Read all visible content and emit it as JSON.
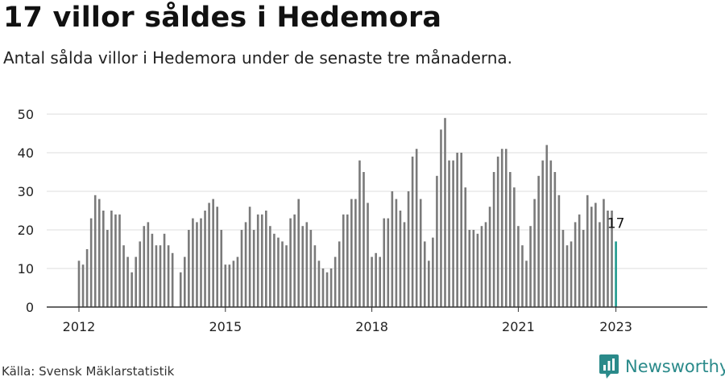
{
  "title": "17 villor såldes i Hedemora",
  "subtitle": "Antal sålda villor i Hedemora under de senaste tre månaderna.",
  "source": "Källa: Svensk Mäklarstatistik",
  "brand": {
    "name": "Newsworthy",
    "icon": "newsworthy-logo-icon"
  },
  "colors": {
    "bar": "#7a7a7a",
    "highlight": "#1e9a8e",
    "grid": "#dddddd",
    "brand": "#2a8a8a"
  },
  "chart_data": {
    "type": "bar",
    "title": "17 villor såldes i Hedemora",
    "ylim": [
      0,
      50
    ],
    "yticks": [
      0,
      10,
      20,
      30,
      40,
      50
    ],
    "xtick_labels": [
      "2012",
      "2015",
      "2018",
      "2021",
      "2023"
    ],
    "xticks": [
      {
        "label": "2012",
        "index": 0
      },
      {
        "label": "2015",
        "index": 36
      },
      {
        "label": "2018",
        "index": 72
      },
      {
        "label": "2021",
        "index": 108
      },
      {
        "label": "2023",
        "index": 132
      }
    ],
    "grid": true,
    "highlight_label": "17",
    "values": [
      12,
      11,
      15,
      23,
      29,
      28,
      25,
      20,
      25,
      24,
      24,
      16,
      13,
      9,
      13,
      17,
      21,
      22,
      19,
      16,
      16,
      19,
      16,
      14,
      null,
      9,
      13,
      20,
      23,
      22,
      23,
      25,
      27,
      28,
      26,
      20,
      11,
      11,
      12,
      13,
      20,
      22,
      26,
      20,
      24,
      24,
      25,
      21,
      19,
      18,
      17,
      16,
      23,
      24,
      28,
      21,
      22,
      20,
      16,
      12,
      10,
      9,
      10,
      13,
      17,
      24,
      24,
      28,
      28,
      38,
      35,
      27,
      13,
      14,
      13,
      23,
      23,
      30,
      28,
      25,
      22,
      30,
      39,
      41,
      28,
      17,
      12,
      18,
      34,
      46,
      49,
      38,
      38,
      40,
      40,
      31,
      20,
      20,
      19,
      21,
      22,
      26,
      35,
      39,
      41,
      41,
      35,
      31,
      21,
      16,
      12,
      21,
      28,
      34,
      38,
      42,
      38,
      35,
      29,
      20,
      16,
      17,
      22,
      24,
      20,
      29,
      26,
      27,
      22,
      28,
      25,
      25,
      17
    ]
  }
}
